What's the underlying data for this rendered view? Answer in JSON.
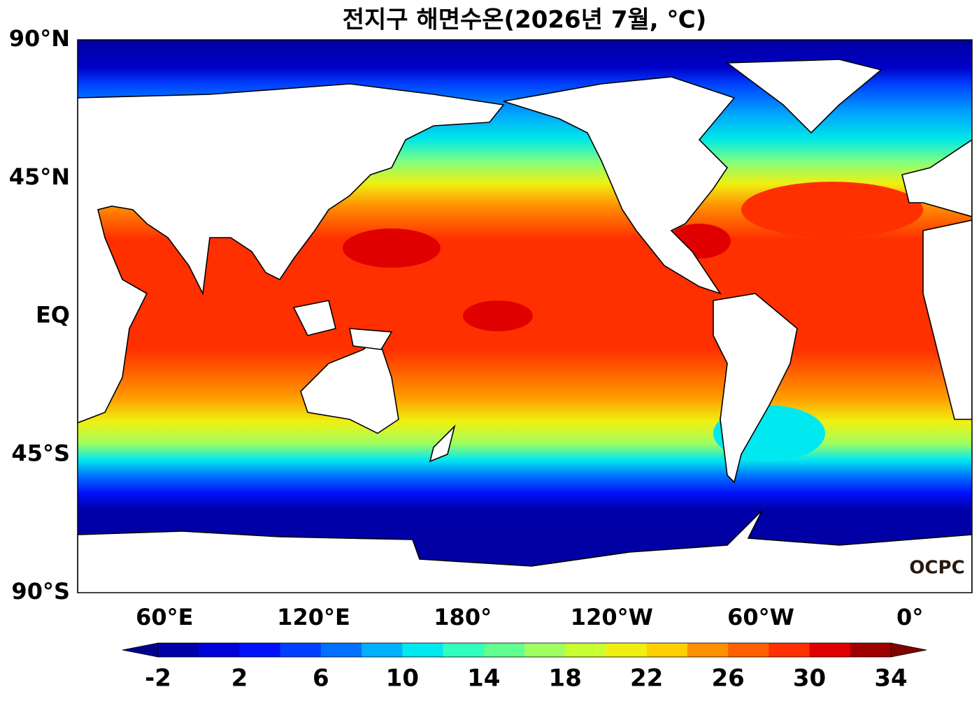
{
  "title": "전지구 해면수온(2026년 7월, ℃)",
  "map": {
    "lonlim": [
      25,
      385
    ],
    "latlim": [
      -90,
      90
    ],
    "lat_ticks": [
      {
        "value": 90,
        "label": "90°N"
      },
      {
        "value": 45,
        "label": "45°N"
      },
      {
        "value": 0,
        "label": "EQ"
      },
      {
        "value": -45,
        "label": "45°S"
      },
      {
        "value": -90,
        "label": "90°S"
      }
    ],
    "lon_ticks": [
      {
        "value": 60,
        "label": "60°E"
      },
      {
        "value": 120,
        "label": "120°E"
      },
      {
        "value": 180,
        "label": "180°"
      },
      {
        "value": 240,
        "label": "120°W"
      },
      {
        "value": 300,
        "label": "60°W"
      },
      {
        "value": 360,
        "label": "0°"
      }
    ],
    "logo": "OCPC"
  },
  "colorbar": {
    "ticks": [
      -2,
      2,
      6,
      10,
      14,
      18,
      22,
      26,
      30,
      34
    ],
    "colors": [
      "#0000a8",
      "#0000d8",
      "#0010f8",
      "#0040ff",
      "#0070ff",
      "#00b0ff",
      "#00e8f0",
      "#30ffc0",
      "#60ff90",
      "#a0ff60",
      "#c8ff30",
      "#f0f010",
      "#ffd000",
      "#ff9000",
      "#ff6000",
      "#ff3000",
      "#e00000",
      "#a00000"
    ],
    "under_color": "#00008c",
    "over_color": "#800000"
  }
}
